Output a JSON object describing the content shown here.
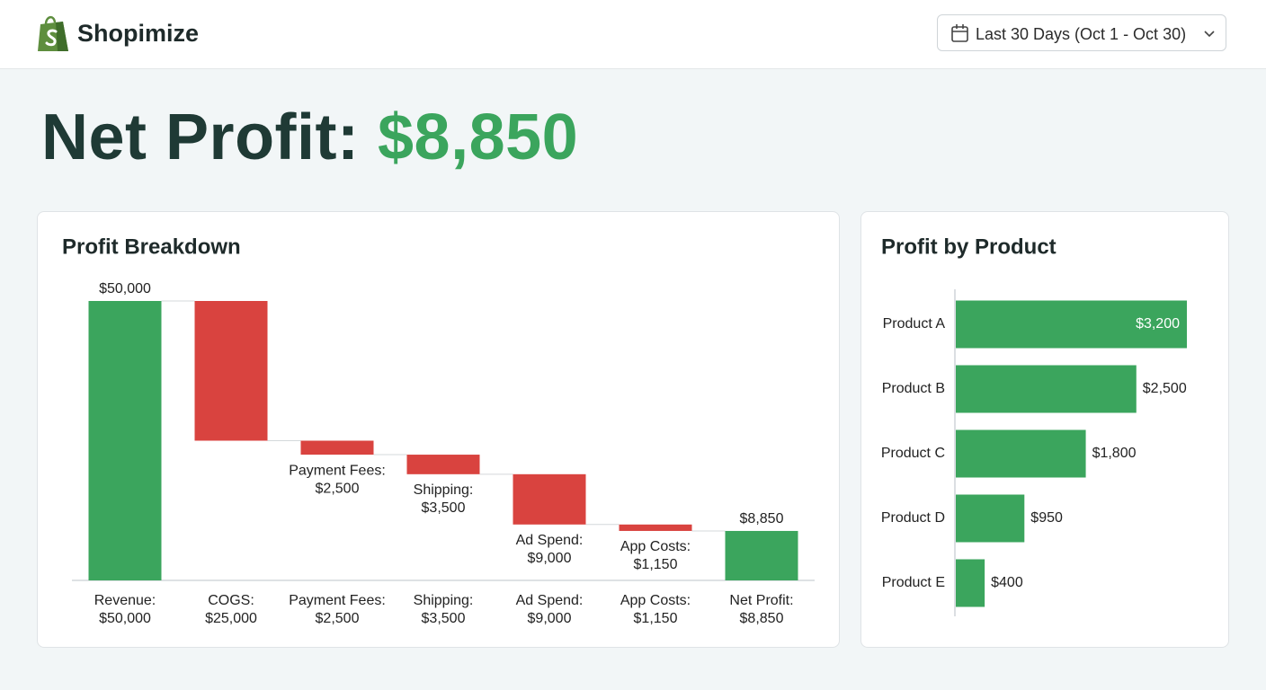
{
  "header": {
    "brand": "Shopimize",
    "date_range": "Last 30 Days (Oct 1 - Oct 30)"
  },
  "headline": {
    "label": "Net Profit:",
    "value": "$8,850"
  },
  "chart_data": [
    {
      "type": "waterfall",
      "title": "Profit Breakdown",
      "categories": [
        "Revenue:",
        "COGS:",
        "Payment Fees:",
        "Shipping:",
        "Ad Spend:",
        "App Costs:",
        "Net Profit:"
      ],
      "values": [
        50000,
        -25000,
        -2500,
        -3500,
        -9000,
        -1150,
        8850
      ],
      "value_labels": [
        "$50,000",
        "$25,000",
        "$2,500",
        "$3,500",
        "$9,000",
        "$1,150",
        "$8,850"
      ],
      "measure": [
        "absolute",
        "relative",
        "relative",
        "relative",
        "relative",
        "relative",
        "total"
      ],
      "total_color": "#3ba55d",
      "decrease_color": "#d9433f",
      "ylim": [
        0,
        50000
      ]
    },
    {
      "type": "bar",
      "orientation": "horizontal",
      "title": "Profit by Product",
      "categories": [
        "Product A",
        "Product B",
        "Product C",
        "Product D",
        "Product E"
      ],
      "values": [
        3200,
        2500,
        1800,
        950,
        400
      ],
      "value_labels": [
        "$3,200",
        "$2,500",
        "$1,800",
        "$950",
        "$400"
      ],
      "color": "#3ba55d",
      "xlim": [
        0,
        3200
      ]
    }
  ]
}
